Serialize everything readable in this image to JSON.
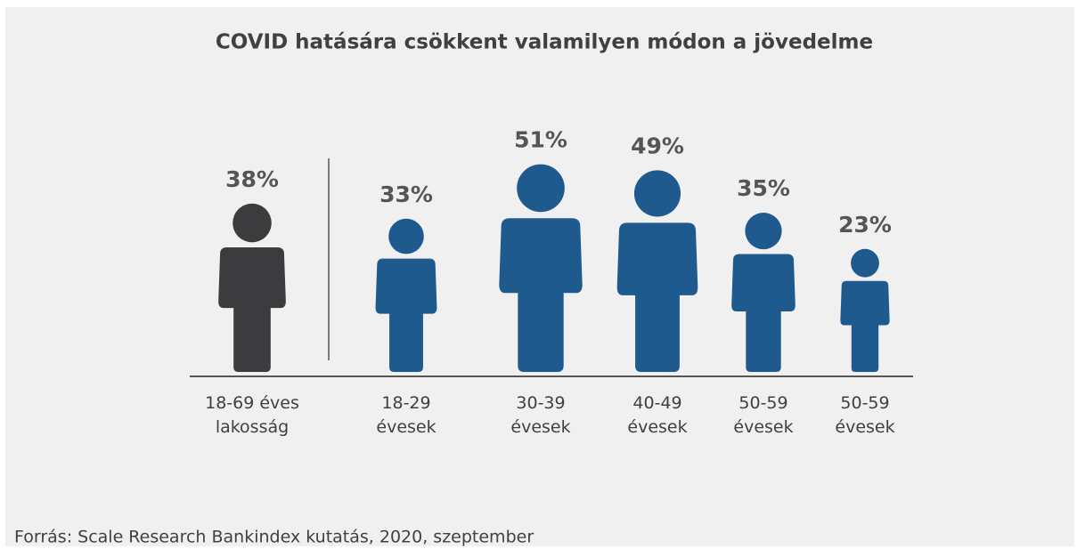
{
  "chart_data": {
    "type": "pictogram",
    "title": "COVID hatására csökkent valamilyen módon a jövedelme",
    "categories": [
      "18-69 éves lakosság",
      "18-29 évesek",
      "30-39 évesek",
      "40-49 évesek",
      "50-59 évesek",
      "50-59 évesek"
    ],
    "values": [
      38,
      33,
      51,
      49,
      35,
      23
    ],
    "value_labels": [
      "38%",
      "33%",
      "51%",
      "49%",
      "35%",
      "23%"
    ],
    "colors": [
      "#3c3c3f",
      "#1f5a8f",
      "#1f5a8f",
      "#1f5a8f",
      "#1f5a8f",
      "#1f5a8f"
    ],
    "source": "Forrás: Scale Research Bankindex kutatás, 2020, szeptember"
  }
}
